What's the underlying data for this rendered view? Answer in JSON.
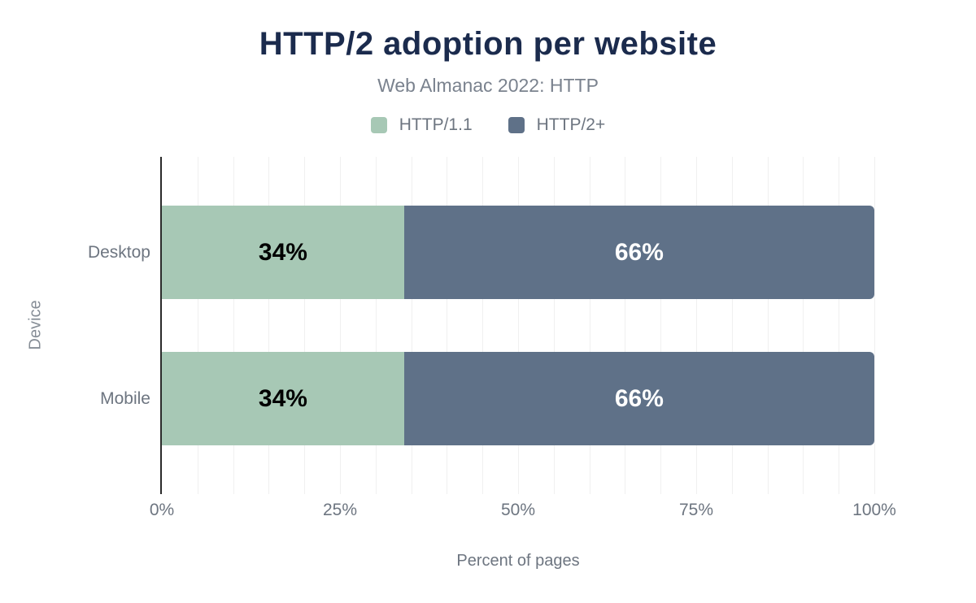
{
  "title": "HTTP/2 adoption per website",
  "subtitle": "Web Almanac 2022: HTTP",
  "colors": {
    "title_text": "#1b2b4d",
    "subtitle_text": "#7a828e",
    "axis_text": "#6d7580",
    "gridline": "#f0f0f0",
    "axis_line": "#2b2b2b",
    "http11_green": "#a7c8b5",
    "http2_slate": "#5f7188"
  },
  "legend": {
    "items": [
      {
        "label": "HTTP/1.1",
        "color": "#a7c8b5"
      },
      {
        "label": "HTTP/2+",
        "color": "#5f7188"
      }
    ]
  },
  "chart_data": {
    "type": "bar",
    "orientation": "horizontal",
    "stacked": true,
    "title": "HTTP/2 adoption per website",
    "subtitle": "Web Almanac 2022: HTTP",
    "categories": [
      "Desktop",
      "Mobile"
    ],
    "series": [
      {
        "name": "HTTP/1.1",
        "values": [
          34,
          34
        ],
        "color": "#a7c8b5",
        "label_color": "#000000"
      },
      {
        "name": "HTTP/2+",
        "values": [
          66,
          66
        ],
        "color": "#5f7188",
        "label_color": "#ffffff"
      }
    ],
    "value_labels": [
      [
        "34%",
        "66%"
      ],
      [
        "34%",
        "66%"
      ]
    ],
    "xlabel": "Percent of pages",
    "ylabel": "Device",
    "xlim": [
      0,
      100
    ],
    "x_ticks": [
      "0%",
      "25%",
      "50%",
      "75%",
      "100%"
    ],
    "x_tick_values": [
      0,
      25,
      50,
      75,
      100
    ],
    "grid": true,
    "grid_step_percent": 5,
    "legend_position": "top"
  }
}
